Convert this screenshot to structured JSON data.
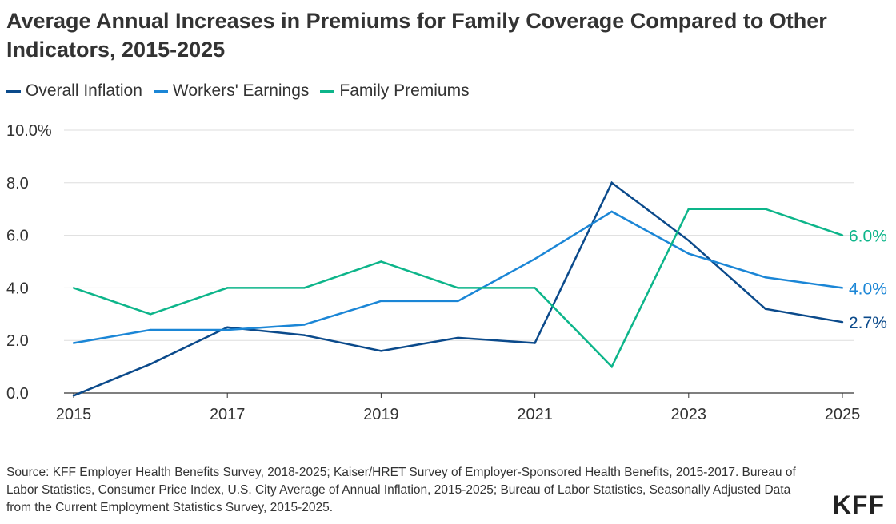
{
  "title": "Average Annual Increases in Premiums for Family Coverage Compared to Other Indicators, 2015-2025",
  "source": "Source: KFF Employer Health Benefits Survey, 2018-2025; Kaiser/HRET Survey of Employer-Sponsored Health Benefits, 2015-2017. Bureau of Labor Statistics, Consumer Price Index, U.S. City Average of Annual Inflation, 2015-2025; Bureau of Labor Statistics, Seasonally Adjusted Data from the Current Employment Statistics Survey, 2015-2025.",
  "logo": "KFF",
  "chart_data": {
    "type": "line",
    "x": [
      2015,
      2016,
      2017,
      2018,
      2019,
      2020,
      2021,
      2022,
      2023,
      2024,
      2025
    ],
    "xticks": [
      "2015",
      "2017",
      "2019",
      "2021",
      "2023",
      "2025"
    ],
    "yticks": [
      "0.0",
      "2.0",
      "4.0",
      "6.0",
      "8.0",
      "10.0%"
    ],
    "ylim": [
      0,
      10
    ],
    "grid": true,
    "legend": "top-left",
    "series": [
      {
        "name": "Overall Inflation",
        "color": "#0b4a8b",
        "values": [
          -0.1,
          1.1,
          2.5,
          2.2,
          1.6,
          2.1,
          1.9,
          8.0,
          5.8,
          3.2,
          2.7
        ],
        "end_label": "2.7%"
      },
      {
        "name": "Workers' Earnings",
        "color": "#1b86d6",
        "values": [
          1.9,
          2.4,
          2.4,
          2.6,
          3.5,
          3.5,
          5.1,
          6.9,
          5.3,
          4.4,
          4.0
        ],
        "end_label": "4.0%"
      },
      {
        "name": "Family Premiums",
        "color": "#0db58a",
        "values": [
          4,
          3,
          4,
          4,
          5,
          4,
          4,
          1,
          7,
          7,
          6
        ],
        "end_label": "6.0%"
      }
    ]
  }
}
